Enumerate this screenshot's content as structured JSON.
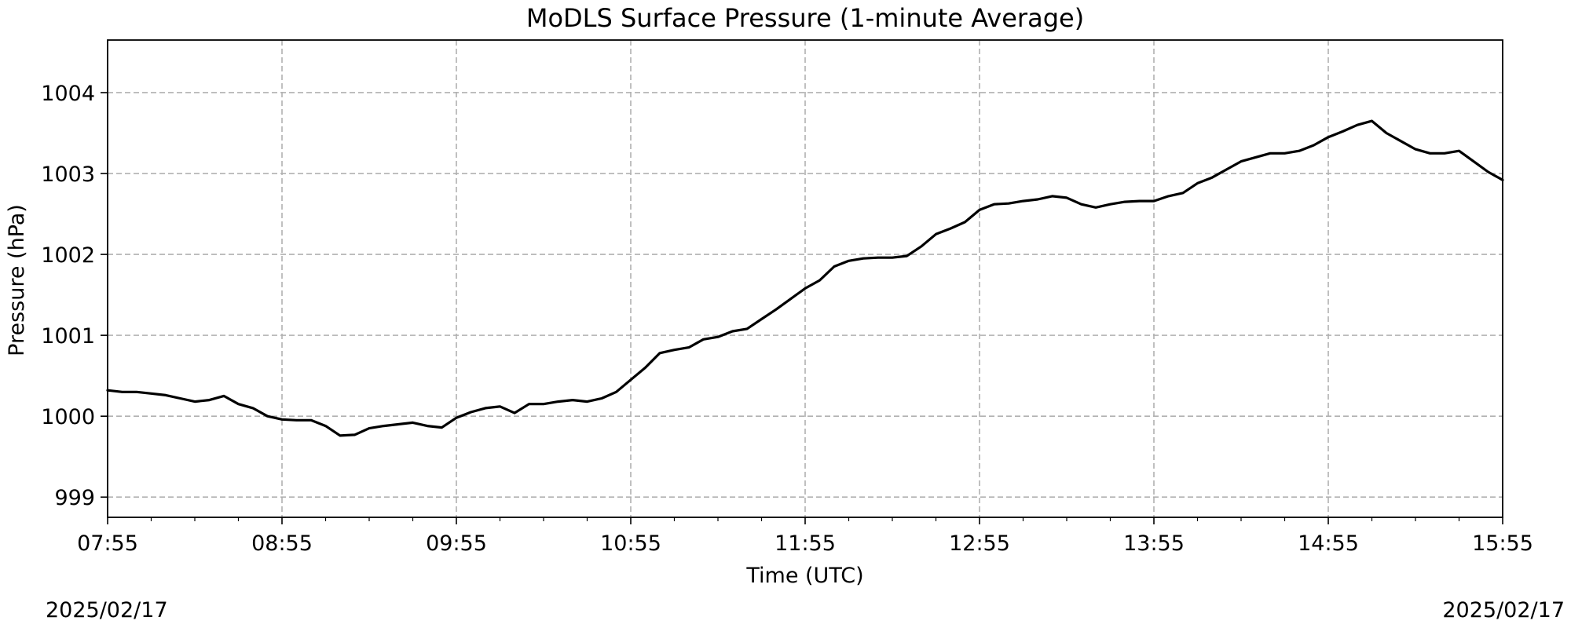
{
  "chart_data": {
    "type": "line",
    "title": "MoDLS Surface Pressure (1-minute Average)",
    "xlabel": "Time (UTC)",
    "ylabel": "Pressure (hPa)",
    "xlim": [
      "07:55",
      "15:55"
    ],
    "ylim": [
      998.75,
      1004.65
    ],
    "x_ticks": [
      "07:55",
      "08:55",
      "09:55",
      "10:55",
      "11:55",
      "12:55",
      "13:55",
      "14:55",
      "15:55"
    ],
    "y_ticks": [
      999,
      1000,
      1001,
      1002,
      1003,
      1004
    ],
    "y_tick_labels": [
      "999",
      "1000",
      "1001",
      "1002",
      "1003",
      "1004"
    ],
    "grid": true,
    "date_left": "2025/02/17",
    "date_right": "2025/02/17",
    "series": [
      {
        "color": "#000000",
        "x": [
          "07:55",
          "08:00",
          "08:05",
          "08:10",
          "08:15",
          "08:20",
          "08:25",
          "08:30",
          "08:35",
          "08:40",
          "08:45",
          "08:50",
          "08:55",
          "09:00",
          "09:05",
          "09:10",
          "09:15",
          "09:20",
          "09:25",
          "09:30",
          "09:35",
          "09:40",
          "09:45",
          "09:50",
          "09:55",
          "10:00",
          "10:05",
          "10:10",
          "10:15",
          "10:20",
          "10:25",
          "10:30",
          "10:35",
          "10:40",
          "10:45",
          "10:50",
          "10:55",
          "11:00",
          "11:05",
          "11:10",
          "11:15",
          "11:20",
          "11:25",
          "11:30",
          "11:35",
          "11:40",
          "11:45",
          "11:50",
          "11:55",
          "12:00",
          "12:05",
          "12:10",
          "12:15",
          "12:20",
          "12:25",
          "12:30",
          "12:35",
          "12:40",
          "12:45",
          "12:50",
          "12:55",
          "13:00",
          "13:05",
          "13:10",
          "13:15",
          "13:20",
          "13:25",
          "13:30",
          "13:35",
          "13:40",
          "13:45",
          "13:50",
          "13:55",
          "14:00",
          "14:05",
          "14:10",
          "14:15",
          "14:20",
          "14:25",
          "14:30",
          "14:35",
          "14:40",
          "14:45",
          "14:50",
          "14:55",
          "15:00",
          "15:05",
          "15:10",
          "15:15",
          "15:20",
          "15:25",
          "15:30",
          "15:35",
          "15:40",
          "15:45",
          "15:50",
          "15:55"
        ],
        "values": [
          1000.32,
          1000.3,
          1000.3,
          1000.28,
          1000.26,
          1000.22,
          1000.18,
          1000.2,
          1000.25,
          1000.15,
          1000.1,
          1000.0,
          999.96,
          999.95,
          999.95,
          999.88,
          999.76,
          999.77,
          999.85,
          999.88,
          999.9,
          999.92,
          999.88,
          999.86,
          999.98,
          1000.05,
          1000.1,
          1000.12,
          1000.04,
          1000.15,
          1000.15,
          1000.18,
          1000.2,
          1000.18,
          1000.22,
          1000.3,
          1000.45,
          1000.6,
          1000.78,
          1000.82,
          1000.85,
          1000.95,
          1000.98,
          1001.05,
          1001.08,
          1001.2,
          1001.32,
          1001.45,
          1001.58,
          1001.68,
          1001.85,
          1001.92,
          1001.95,
          1001.96,
          1001.96,
          1001.98,
          1002.1,
          1002.25,
          1002.32,
          1002.4,
          1002.55,
          1002.62,
          1002.63,
          1002.66,
          1002.68,
          1002.72,
          1002.7,
          1002.62,
          1002.58,
          1002.62,
          1002.65,
          1002.66,
          1002.66,
          1002.72,
          1002.76,
          1002.88,
          1002.95,
          1003.05,
          1003.15,
          1003.2,
          1003.25,
          1003.25,
          1003.28,
          1003.35,
          1003.45,
          1003.52,
          1003.6,
          1003.65,
          1003.5,
          1003.4,
          1003.3,
          1003.25,
          1003.25,
          1003.28,
          1003.15,
          1003.02,
          1002.92
        ]
      }
    ]
  }
}
